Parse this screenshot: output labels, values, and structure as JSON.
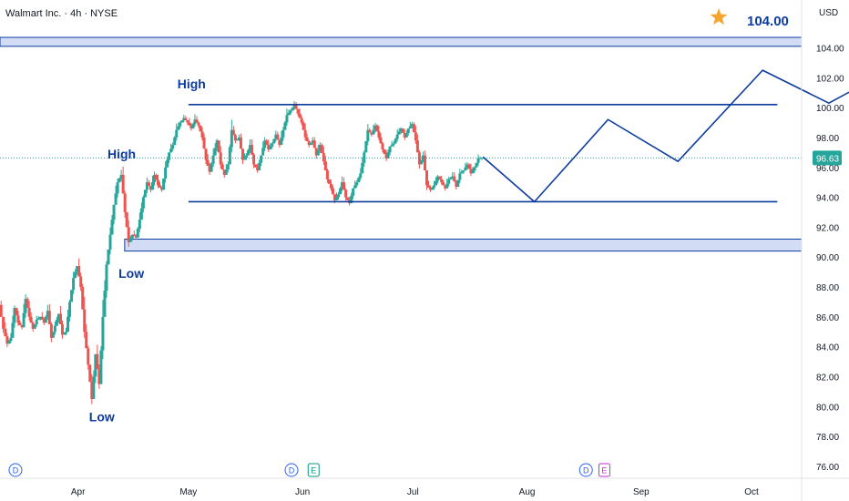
{
  "header": {
    "symbol_line": "Walmart Inc. · 4h · NYSE",
    "currency": "USD"
  },
  "colors": {
    "up": "#26a69a",
    "down": "#ef5350",
    "annotation": "#0d3b9e",
    "zone_fill": "#d3dcf5",
    "star": "#f7a531",
    "axis_text": "#131722",
    "price_tag": "#26a69a"
  },
  "chart_data": {
    "type": "candlestick",
    "y_axis": {
      "min": 75.2,
      "max": 107.2,
      "ticks": [
        "76.00",
        "78.00",
        "80.00",
        "82.00",
        "84.00",
        "86.00",
        "88.00",
        "90.00",
        "92.00",
        "94.00",
        "96.00",
        "98.00",
        "100.00",
        "102.00",
        "104.00"
      ]
    },
    "x_axis": {
      "ticks": [
        {
          "label": "Apr",
          "day": 0
        },
        {
          "label": "May",
          "day": 30
        },
        {
          "label": "Jun",
          "day": 61
        },
        {
          "label": "Jul",
          "day": 91
        },
        {
          "label": "Aug",
          "day": 122
        },
        {
          "label": "Sep",
          "day": 153
        },
        {
          "label": "Oct",
          "day": 183
        }
      ],
      "day_range": [
        -21.2,
        196.6
      ]
    },
    "last_price": {
      "value": 96.63,
      "label": "96.63"
    },
    "price_path": [
      [
        -21.2,
        86.8
      ],
      [
        -20,
        85.2
      ],
      [
        -19,
        84.2
      ],
      [
        -18,
        84.6
      ],
      [
        -17,
        86.6
      ],
      [
        -16,
        85.6
      ],
      [
        -15,
        85.3
      ],
      [
        -14,
        87.2
      ],
      [
        -13,
        86.0
      ],
      [
        -12,
        85.2
      ],
      [
        -11,
        85.8
      ],
      [
        -10,
        86.0
      ],
      [
        -9,
        85.6
      ],
      [
        -8,
        86.4
      ],
      [
        -7,
        84.6
      ],
      [
        -6,
        85.4
      ],
      [
        -5,
        86.2
      ],
      [
        -4,
        84.8
      ],
      [
        -3,
        85.0
      ],
      [
        -2,
        87.0
      ],
      [
        -1,
        88.6
      ],
      [
        0,
        89.4
      ],
      [
        1,
        88.0
      ],
      [
        2,
        85.0
      ],
      [
        3,
        82.8
      ],
      [
        4,
        80.5
      ],
      [
        5,
        83.5
      ],
      [
        6,
        81.5
      ],
      [
        7,
        86.0
      ],
      [
        8,
        89.5
      ],
      [
        9,
        91.5
      ],
      [
        10,
        93.5
      ],
      [
        11,
        95.0
      ],
      [
        12,
        95.5
      ],
      [
        13,
        93.0
      ],
      [
        14,
        91.0
      ],
      [
        15,
        91.5
      ],
      [
        16,
        91.3
      ],
      [
        17,
        92.5
      ],
      [
        18,
        94.0
      ],
      [
        19,
        95.0
      ],
      [
        20,
        94.5
      ],
      [
        21,
        95.5
      ],
      [
        22,
        94.8
      ],
      [
        23,
        94.5
      ],
      [
        24,
        96.0
      ],
      [
        25,
        97.0
      ],
      [
        26,
        97.5
      ],
      [
        27,
        98.5
      ],
      [
        28,
        99.0
      ],
      [
        29,
        99.3
      ],
      [
        30,
        99.0
      ],
      [
        31,
        98.6
      ],
      [
        32,
        99.2
      ],
      [
        33,
        98.8
      ],
      [
        34,
        98.0
      ],
      [
        35,
        96.5
      ],
      [
        36,
        95.7
      ],
      [
        37,
        96.8
      ],
      [
        38,
        97.8
      ],
      [
        39,
        96.2
      ],
      [
        40,
        95.5
      ],
      [
        41,
        96.2
      ],
      [
        42,
        98.5
      ],
      [
        43,
        97.8
      ],
      [
        44,
        98.0
      ],
      [
        45,
        96.5
      ],
      [
        46,
        96.8
      ],
      [
        47,
        97.5
      ],
      [
        48,
        96.2
      ],
      [
        49,
        95.8
      ],
      [
        50,
        96.8
      ],
      [
        51,
        97.8
      ],
      [
        52,
        97.2
      ],
      [
        53,
        97.6
      ],
      [
        54,
        98.2
      ],
      [
        55,
        97.5
      ],
      [
        56,
        98.5
      ],
      [
        57,
        99.5
      ],
      [
        58,
        99.8
      ],
      [
        59,
        100.2
      ],
      [
        60,
        99.6
      ],
      [
        61,
        99.0
      ],
      [
        62,
        98.0
      ],
      [
        63,
        97.5
      ],
      [
        64,
        97.8
      ],
      [
        65,
        96.8
      ],
      [
        66,
        97.5
      ],
      [
        67,
        96.4
      ],
      [
        68,
        95.2
      ],
      [
        69,
        94.6
      ],
      [
        70,
        93.8
      ],
      [
        71,
        94.2
      ],
      [
        72,
        95.0
      ],
      [
        73,
        94.0
      ],
      [
        74,
        93.6
      ],
      [
        75,
        94.6
      ],
      [
        76,
        95.0
      ],
      [
        77,
        95.6
      ],
      [
        78,
        97.0
      ],
      [
        79,
        98.5
      ],
      [
        80,
        98.2
      ],
      [
        81,
        98.8
      ],
      [
        82,
        98.0
      ],
      [
        83,
        97.2
      ],
      [
        84,
        96.6
      ],
      [
        85,
        97.4
      ],
      [
        86,
        97.6
      ],
      [
        87,
        98.2
      ],
      [
        88,
        98.6
      ],
      [
        89,
        98.0
      ],
      [
        90,
        98.6
      ],
      [
        91,
        98.9
      ],
      [
        92,
        97.8
      ],
      [
        93,
        96.2
      ],
      [
        94,
        96.8
      ],
      [
        95,
        94.8
      ],
      [
        96,
        94.5
      ],
      [
        97,
        94.8
      ],
      [
        98,
        95.4
      ],
      [
        99,
        95.0
      ],
      [
        100,
        94.6
      ],
      [
        101,
        95.2
      ],
      [
        102,
        95.4
      ],
      [
        103,
        94.7
      ],
      [
        104,
        95.6
      ],
      [
        105,
        95.8
      ],
      [
        106,
        96.2
      ],
      [
        107,
        95.6
      ],
      [
        108,
        96.0
      ],
      [
        109,
        96.6
      ],
      [
        110,
        96.63
      ]
    ],
    "annotations": {
      "resistance_line": {
        "value": 100.2,
        "day_start": 30,
        "day_end": 190
      },
      "support_line": {
        "value": 93.7,
        "day_start": 30,
        "day_end": 190
      },
      "upper_zone": {
        "top": 104.7,
        "bottom": 104.1
      },
      "lower_zone": {
        "top": 91.2,
        "bottom": 90.4
      },
      "projection_path": [
        [
          110,
          96.7
        ],
        [
          124,
          93.7
        ],
        [
          144,
          99.2
        ],
        [
          163,
          96.4
        ],
        [
          186,
          102.5
        ],
        [
          204,
          100.3
        ],
        [
          228,
          103.5
        ]
      ],
      "target": {
        "label": "104.00",
        "value": 104.0
      },
      "labels": [
        {
          "text": "High",
          "day": 27,
          "value": 101.3
        },
        {
          "text": "High",
          "day": 8,
          "value": 96.6
        },
        {
          "text": "Low",
          "day": 11,
          "value": 88.6
        },
        {
          "text": "Low",
          "day": 3,
          "value": 79.0
        }
      ]
    },
    "events": [
      {
        "kind": "D",
        "day": -17
      },
      {
        "kind": "D",
        "day": 58
      },
      {
        "kind": "E",
        "day": 64
      },
      {
        "kind": "D",
        "day": 138
      },
      {
        "kind": "E",
        "day": 143
      }
    ]
  }
}
